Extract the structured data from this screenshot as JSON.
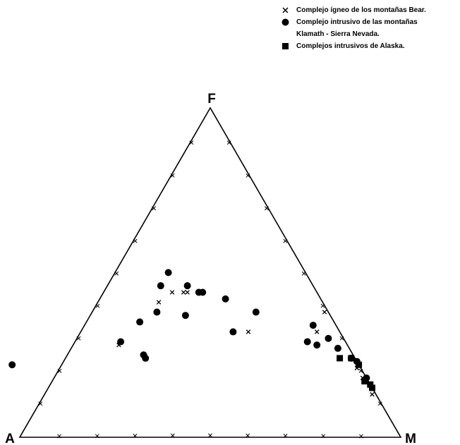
{
  "chart_data": {
    "type": "scatter",
    "subtype": "ternary",
    "vertices": {
      "top": "F",
      "left": "A",
      "right": "M"
    },
    "ticks_per_side": 10,
    "legend_placement": "top-right",
    "series": [
      {
        "name": "Complejo ígneo de los montañas Bear.",
        "marker": "x",
        "points": [
          {
            "A": 0.6,
            "F": 0.28,
            "M": 0.12
          },
          {
            "A": 0.43,
            "F": 0.41,
            "M": 0.16
          },
          {
            "A": 0.38,
            "F": 0.44,
            "M": 0.18
          },
          {
            "A": 0.35,
            "F": 0.44,
            "M": 0.21
          },
          {
            "A": 0.34,
            "F": 0.44,
            "M": 0.22
          },
          {
            "A": 0.24,
            "F": 0.32,
            "M": 0.44
          },
          {
            "A": 0.01,
            "F": 0.38,
            "M": 0.61
          },
          {
            "A": 0.06,
            "F": 0.32,
            "M": 0.62
          },
          {
            "A": 0.01,
            "F": 0.21,
            "M": 0.78
          },
          {
            "A": 0.01,
            "F": 0.18,
            "M": 0.81
          },
          {
            "A": 0.01,
            "F": 0.13,
            "M": 0.86
          }
        ]
      },
      {
        "name": "Complejo intrusivo de las montañas\nKlamath - Sierra Nevada.",
        "marker": "circle",
        "points": [
          {
            "A": 0.91,
            "F": 0.22,
            "M": -0.13
          },
          {
            "A": 0.59,
            "F": 0.29,
            "M": 0.12
          },
          {
            "A": 0.55,
            "F": 0.25,
            "M": 0.2
          },
          {
            "A": 0.55,
            "F": 0.24,
            "M": 0.21
          },
          {
            "A": 0.51,
            "F": 0.35,
            "M": 0.14
          },
          {
            "A": 0.45,
            "F": 0.38,
            "M": 0.17
          },
          {
            "A": 0.4,
            "F": 0.46,
            "M": 0.14
          },
          {
            "A": 0.36,
            "F": 0.5,
            "M": 0.14
          },
          {
            "A": 0.33,
            "F": 0.46,
            "M": 0.21
          },
          {
            "A": 0.31,
            "F": 0.44,
            "M": 0.25
          },
          {
            "A": 0.3,
            "F": 0.44,
            "M": 0.26
          },
          {
            "A": 0.28,
            "F": 0.32,
            "M": 0.4
          },
          {
            "A": 0.25,
            "F": 0.42,
            "M": 0.33
          },
          {
            "A": 0.38,
            "F": 0.37,
            "M": 0.25
          },
          {
            "A": 0.19,
            "F": 0.38,
            "M": 0.43
          },
          {
            "A": 0.06,
            "F": 0.34,
            "M": 0.6
          },
          {
            "A": 0.04,
            "F": 0.3,
            "M": 0.66
          },
          {
            "A": 0.1,
            "F": 0.29,
            "M": 0.61
          },
          {
            "A": 0.08,
            "F": 0.28,
            "M": 0.64
          },
          {
            "A": 0.03,
            "F": 0.27,
            "M": 0.7
          },
          {
            "A": 0.01,
            "F": 0.24,
            "M": 0.75
          },
          {
            "A": 0.0,
            "F": 0.23,
            "M": 0.77
          },
          {
            "A": 0.0,
            "F": 0.18,
            "M": 0.82
          }
        ]
      },
      {
        "name": "Complejos intrusivos de Alaska.",
        "marker": "square",
        "points": [
          {
            "A": 0.04,
            "F": 0.24,
            "M": 0.72
          },
          {
            "A": 0.01,
            "F": 0.24,
            "M": 0.75
          },
          {
            "A": 0.0,
            "F": 0.22,
            "M": 0.78
          },
          {
            "A": 0.01,
            "F": 0.17,
            "M": 0.82
          },
          {
            "A": 0.0,
            "F": 0.16,
            "M": 0.84
          },
          {
            "A": 0.0,
            "F": 0.15,
            "M": 0.85
          }
        ]
      }
    ]
  }
}
